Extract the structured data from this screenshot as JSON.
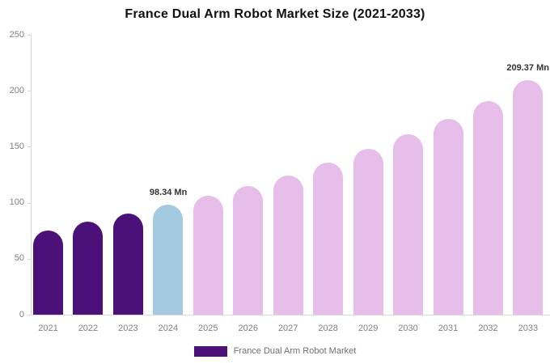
{
  "title": "France Dual Arm Robot Market Size (2021-2033)",
  "legend": {
    "label": "France Dual Arm Robot Market",
    "swatch_color": "#4b1179"
  },
  "colors": {
    "historical_bar": "#4b1179",
    "base_year_bar": "#a3c9e1",
    "forecast_bar": "#e6bee9",
    "axis_line": "#d9d9d9",
    "tick_label": "#808080",
    "annotation_text": "#333333",
    "title_text": "#111111",
    "background": "#ffffff"
  },
  "chart_data": {
    "type": "bar",
    "title": "France Dual Arm Robot Market Size (2021-2033)",
    "unit": "Mn",
    "categories": [
      "2021",
      "2022",
      "2023",
      "2024",
      "2025",
      "2026",
      "2027",
      "2028",
      "2029",
      "2030",
      "2031",
      "2032",
      "2033"
    ],
    "values": [
      75,
      83,
      90,
      98.34,
      106,
      115,
      124,
      136,
      148,
      161,
      175,
      191,
      209.37
    ],
    "bar_roles": [
      "historical",
      "historical",
      "historical",
      "base",
      "forecast",
      "forecast",
      "forecast",
      "forecast",
      "forecast",
      "forecast",
      "forecast",
      "forecast",
      "forecast"
    ],
    "annotations": [
      {
        "category": "2024",
        "text": "98.34 Mn"
      },
      {
        "category": "2033",
        "text": "209.37 Mn"
      }
    ],
    "xlabel": "",
    "ylabel": "",
    "ylim": [
      0,
      250
    ],
    "yticks": [
      0,
      50,
      100,
      150,
      200,
      250
    ],
    "grid": false,
    "legend_position": "bottom",
    "legend_entries": [
      "France Dual Arm Robot Market"
    ]
  }
}
